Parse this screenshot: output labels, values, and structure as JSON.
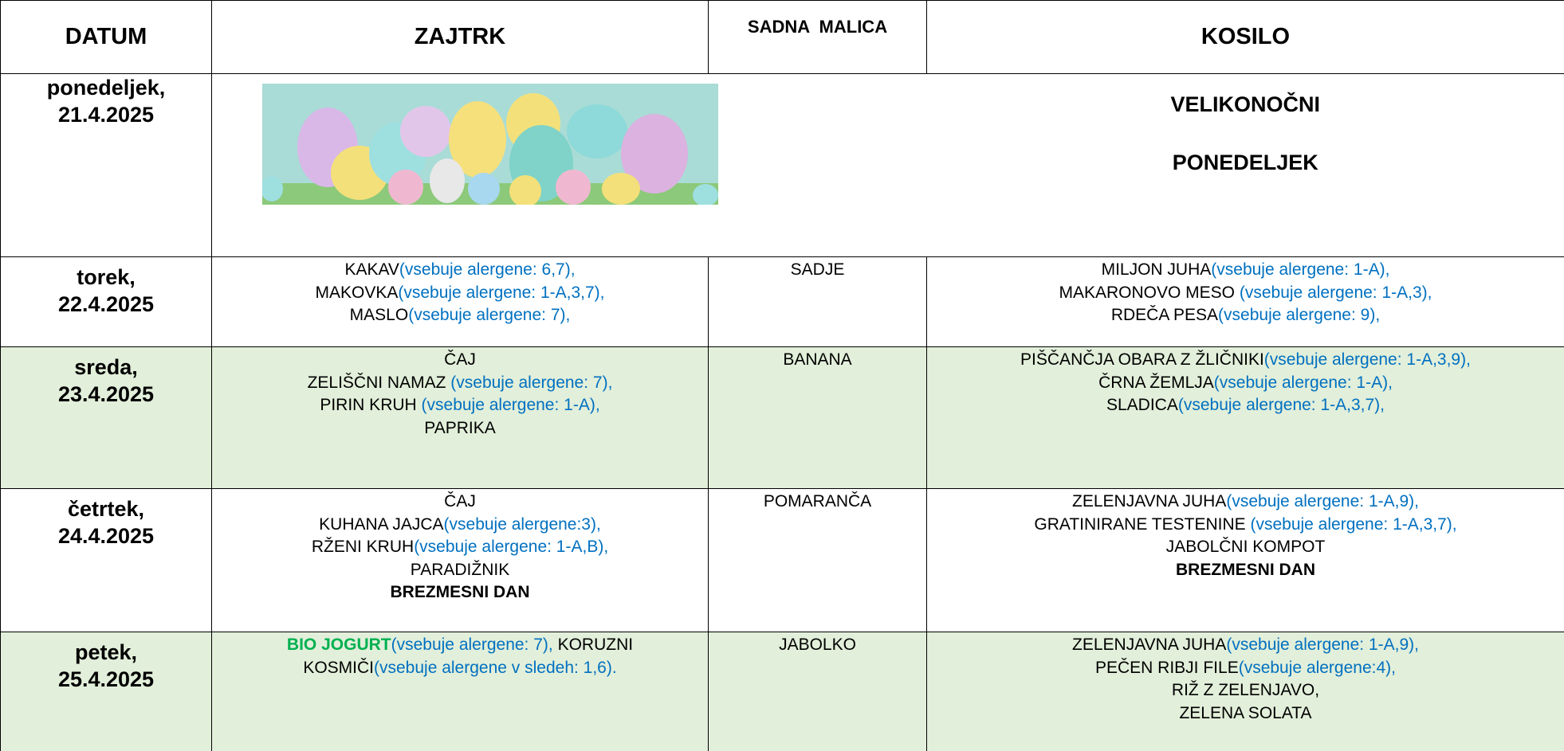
{
  "table": {
    "header": [
      "DATUM",
      "ZAJTRK",
      "SADNA  MALICA",
      "KOSILO"
    ],
    "rows": [
      {
        "date": [
          "ponedeljek,",
          "21.4.2025"
        ],
        "lunch": [
          [
            {
              "text": "VELIKONOČNI",
              "bold": true
            }
          ],
          [
            {
              "text": "PONEDELJEK",
              "bold": true
            }
          ]
        ]
      },
      {
        "date": [
          "torek,",
          "22.4.2025"
        ],
        "breakfast": [
          [
            {
              "text": "KAKAV"
            },
            {
              "text": "(vsebuje alergene: 6,7),",
              "color": "#0070c0"
            }
          ],
          [
            {
              "text": "MAKOVKA"
            },
            {
              "text": "(vsebuje alergene: 1-A,3,7),",
              "color": "#0070c0"
            }
          ],
          [
            {
              "text": "MASLO"
            },
            {
              "text": "(vsebuje alergene: 7),",
              "color": "#0070c0"
            }
          ]
        ],
        "snack": "SADJE",
        "lunch": [
          [
            {
              "text": "MILJON JUHA"
            },
            {
              "text": "(vsebuje alergene: 1-A),",
              "color": "#0070c0"
            }
          ],
          [
            {
              "text": "MAKARONOVO MESO "
            },
            {
              "text": "(vsebuje alergene: 1-A,3),",
              "color": "#0070c0"
            }
          ],
          [
            {
              "text": "RDEČA PESA"
            },
            {
              "text": "(vsebuje alergene: 9),",
              "color": "#0070c0"
            }
          ]
        ]
      },
      {
        "date": [
          "sreda,",
          "23.4.2025"
        ],
        "shaded": true,
        "breakfast": [
          [
            {
              "text": "ČAJ"
            }
          ],
          [
            {
              "text": "ZELIŠČNI NAMAZ "
            },
            {
              "text": "(vsebuje alergene: 7),",
              "color": "#0070c0"
            }
          ],
          [
            {
              "text": "PIRIN KRUH "
            },
            {
              "text": "(vsebuje alergene: 1-A),",
              "color": "#0070c0"
            }
          ],
          [
            {
              "text": "PAPRIKA"
            }
          ]
        ],
        "snack": "BANANA",
        "lunch": [
          [
            {
              "text": "PIŠČANČJA OBARA Z ŽLIČNIKI"
            },
            {
              "text": "(vsebuje alergene: 1-A,3,9),",
              "color": "#0070c0"
            }
          ],
          [
            {
              "text": "ČRNA ŽEMLJA"
            },
            {
              "text": "(vsebuje alergene: 1-A),",
              "color": "#0070c0"
            }
          ],
          [
            {
              "text": "SLADICA"
            },
            {
              "text": "(vsebuje alergene: 1-A,3,7),",
              "color": "#0070c0"
            }
          ]
        ]
      },
      {
        "date": [
          "četrtek,",
          "24.4.2025"
        ],
        "breakfast": [
          [
            {
              "text": "ČAJ"
            }
          ],
          [
            {
              "text": "KUHANA JAJCA"
            },
            {
              "text": "(vsebuje alergene:3),",
              "color": "#0070c0"
            }
          ],
          [
            {
              "text": "RŽENI KRUH"
            },
            {
              "text": "(vsebuje alergene: 1-A,B),",
              "color": "#0070c0"
            }
          ],
          [
            {
              "text": "PARADIŽNIK"
            }
          ],
          [
            {
              "text": "BREZMESNI DAN",
              "bold": true
            }
          ]
        ],
        "snack": "POMARANČA",
        "lunch": [
          [
            {
              "text": "ZELENJAVNA JUHA"
            },
            {
              "text": "(vsebuje alergene: 1-A,9),",
              "color": "#0070c0"
            }
          ],
          [
            {
              "text": "GRATINIRANE TESTENINE "
            },
            {
              "text": "(vsebuje alergene: 1-A,3,7),",
              "color": "#0070c0"
            }
          ],
          [
            {
              "text": "JABOLČNI KOMPOT"
            }
          ],
          [
            {
              "text": "BREZMESNI DAN",
              "bold": true
            }
          ]
        ]
      },
      {
        "date": [
          "petek,",
          "25.4.2025"
        ],
        "shaded": true,
        "breakfast": [
          [
            {
              "text": "BIO JOGURT",
              "bold": true,
              "color": "#00b050"
            },
            {
              "text": "(vsebuje alergene: 7), ",
              "color": "#0070c0"
            },
            {
              "text": "KORUZNI"
            }
          ],
          [
            {
              "text": "KOSMIČI"
            },
            {
              "text": "(vsebuje alergene v sledeh: 1,6).",
              "color": "#0070c0"
            }
          ]
        ],
        "snack": "JABOLKO",
        "lunch": [
          [
            {
              "text": "ZELENJAVNA JUHA"
            },
            {
              "text": "(vsebuje alergene: 1-A,9),",
              "color": "#0070c0"
            }
          ],
          [
            {
              "text": "PEČEN RIBJI FILE"
            },
            {
              "text": "(vsebuje alergene:4),",
              "color": "#0070c0"
            }
          ],
          [
            {
              "text": "RIŽ Z ZELENJAVO,"
            }
          ],
          [
            {
              "text": "ZELENA SOLATA"
            }
          ]
        ]
      }
    ]
  }
}
